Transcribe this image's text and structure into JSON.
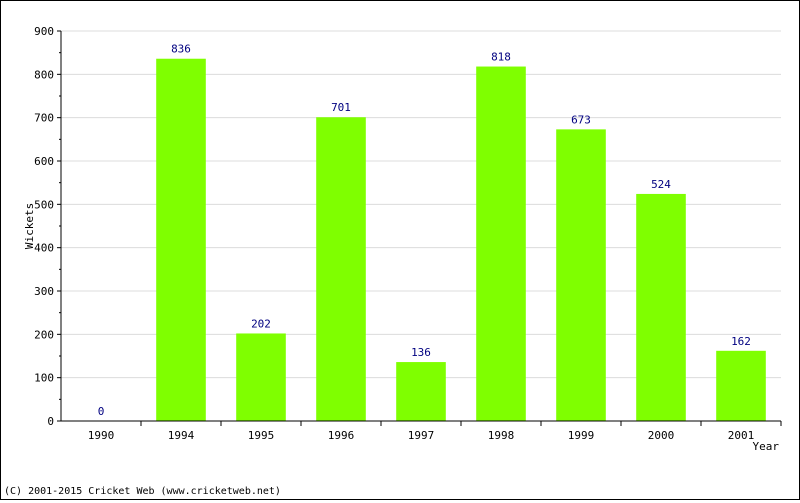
{
  "footer": {
    "copyright": "(C) 2001-2015 Cricket Web (www.cricketweb.net)"
  },
  "colors": {
    "bar": "#7fff00",
    "data_label": "#000080",
    "grid": "#dcdcdc",
    "axis": "#000000"
  },
  "chart_data": {
    "type": "bar",
    "title": "",
    "xlabel": "Year",
    "ylabel": "Wickets",
    "categories": [
      "1990",
      "1994",
      "1995",
      "1996",
      "1997",
      "1998",
      "1999",
      "2000",
      "2001"
    ],
    "values": [
      0,
      836,
      202,
      701,
      136,
      818,
      673,
      524,
      162
    ],
    "ylim": [
      0,
      900
    ],
    "yticks": [
      0,
      100,
      200,
      300,
      400,
      500,
      600,
      700,
      800,
      900
    ],
    "grid": true,
    "legend": "none"
  }
}
